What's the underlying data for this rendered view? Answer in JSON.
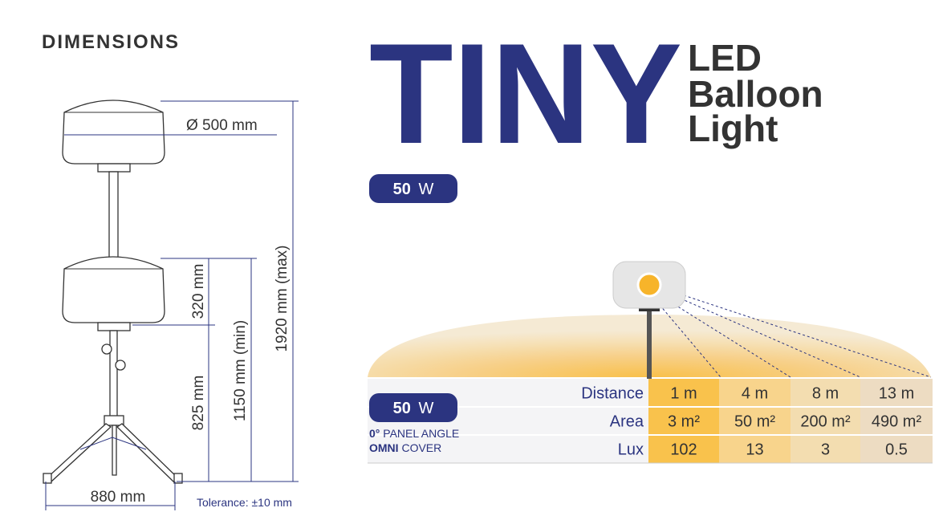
{
  "header": {
    "section": "DIMENSIONS",
    "title": "TINY",
    "subtitle": [
      "LED",
      "Balloon",
      "Light"
    ]
  },
  "power_badge": {
    "value": "50",
    "unit": "W"
  },
  "dimensions": {
    "diameter": "Ø 500 mm",
    "balloon_height": "320 mm",
    "pole_height": "825 mm",
    "min_height": "1150 mm (min)",
    "max_height": "1920 mm (max)",
    "base_width": "880 mm",
    "tolerance": "Tolerance: ±10 mm"
  },
  "table": {
    "badge": {
      "value": "50",
      "unit": "W"
    },
    "notes": [
      {
        "bold": "0°",
        "text": "PANEL ANGLE"
      },
      {
        "bold": "OMNI",
        "text": "COVER"
      }
    ],
    "rows": [
      {
        "label": "Distance",
        "cells": [
          "1 m",
          "4 m",
          "8 m",
          "13 m"
        ]
      },
      {
        "label": "Area",
        "cells": [
          "3 m²",
          "50 m²",
          "200 m²",
          "490 m²"
        ]
      },
      {
        "label": "Lux",
        "cells": [
          "102",
          "13",
          "3",
          "0.5"
        ]
      }
    ]
  }
}
